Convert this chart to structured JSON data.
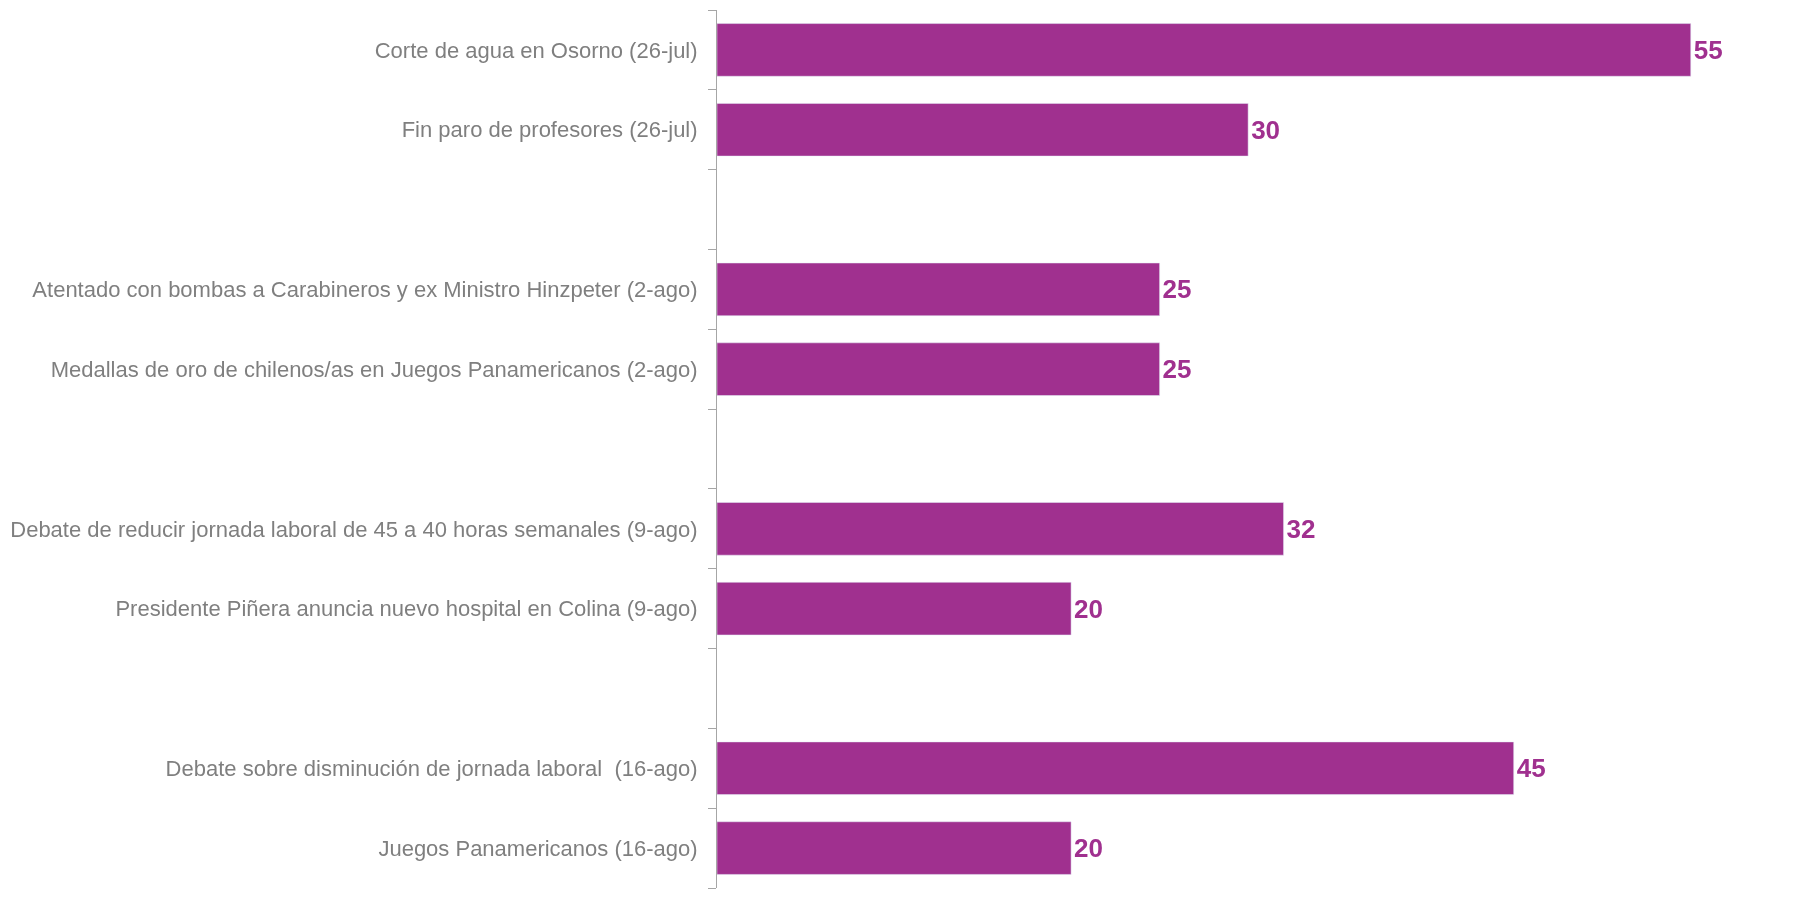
{
  "chart_data": {
    "type": "bar",
    "orientation": "horizontal",
    "data_labels": true,
    "legend": false,
    "categories": [
      "Corte de agua en Osorno (26-jul)",
      "Fin paro de profesores (26-jul)",
      null,
      "Atentado con bombas a Carabineros y ex Ministro Hinzpeter (2-ago)",
      "Medallas de oro de chilenos/as en Juegos Panamericanos (2-ago)",
      null,
      "Debate de reducir jornada laboral de 45 a 40 horas semanales (9-ago)",
      "Presidente Piñera anuncia nuevo hospital en Colina (9-ago)",
      null,
      "Debate sobre disminución de jornada laboral  (16-ago)",
      "Juegos Panamericanos (16-ago)"
    ],
    "values": [
      55,
      30,
      null,
      25,
      25,
      null,
      32,
      20,
      null,
      45,
      20
    ],
    "color": "#a0308f"
  }
}
